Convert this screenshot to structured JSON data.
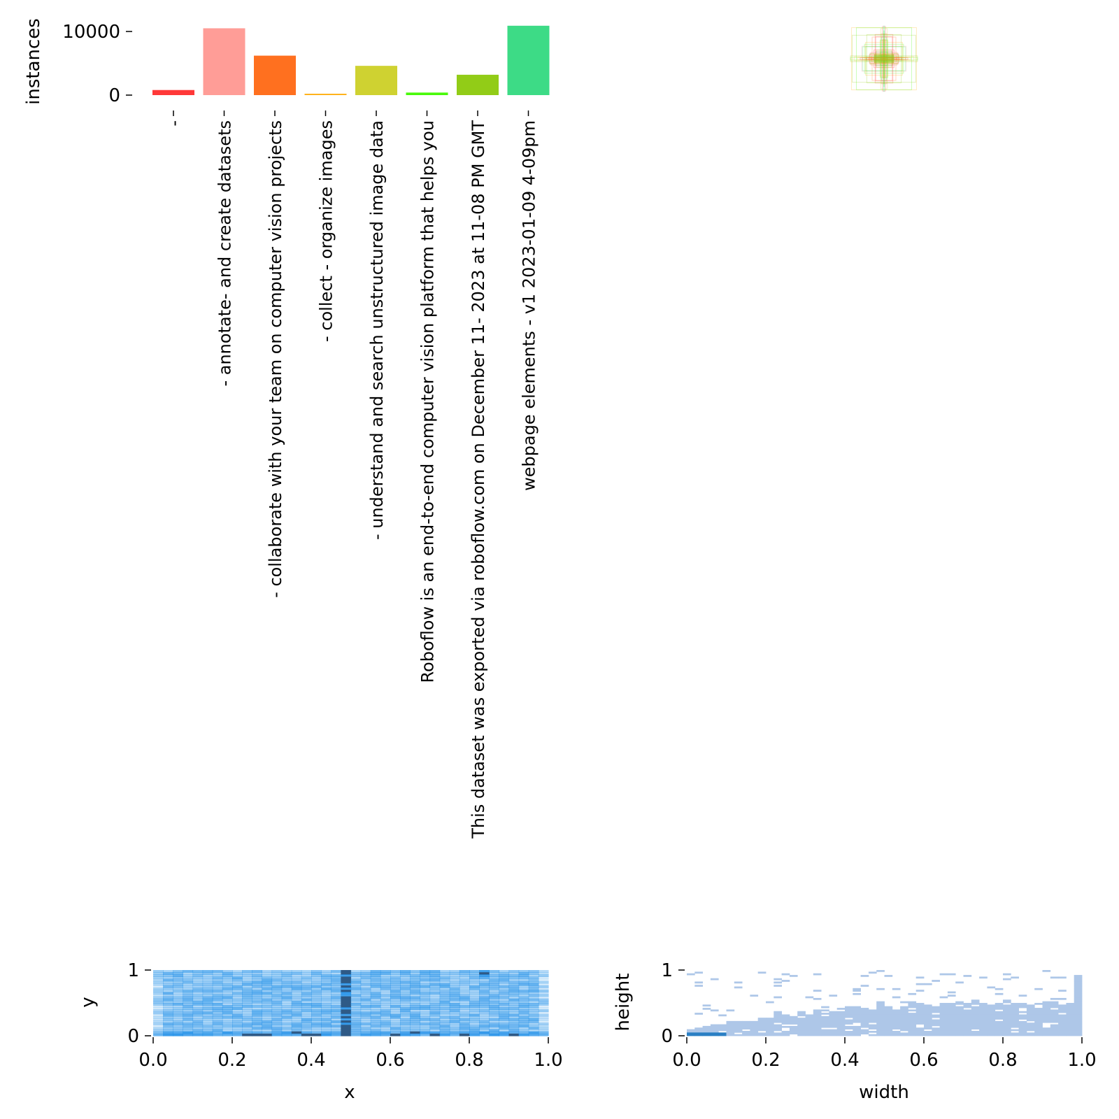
{
  "chart_data": [
    {
      "type": "bar",
      "ylabel": "instances",
      "xlabel": "",
      "ylim": [
        0,
        11000
      ],
      "yticks": [
        "0",
        "10000"
      ],
      "categories": [
        "-",
        "- annotate- and create datasets",
        "- collaborate with your team on computer vision projects",
        "- collect - organize images",
        "- understand and search unstructured image data",
        "Roboflow is an end-to-end computer vision platform that helps you",
        "This dataset was exported via roboflow.com on December 11- 2023 at 11-08 PM GMT",
        "webpage elements - v1 2023-01-09 4-09pm"
      ],
      "values": [
        800,
        10500,
        6200,
        150,
        4600,
        400,
        3200,
        10900
      ],
      "colors": [
        "#ff3838",
        "#ff9d97",
        "#ff701f",
        "#ffb21d",
        "#cfd231",
        "#48f90a",
        "#92cc17",
        "#3ddb86"
      ]
    },
    {
      "type": "scatter",
      "description_kind": "box-overlay",
      "xlim": [
        0,
        1
      ],
      "ylim": [
        0,
        1
      ]
    },
    {
      "type": "heatmap",
      "xlabel": "x",
      "ylabel": "y",
      "xlim": [
        0,
        1
      ],
      "ylim": [
        0,
        1
      ],
      "xticks": [
        "0.0",
        "0.2",
        "0.4",
        "0.6",
        "0.8",
        "1.0"
      ],
      "yticks": [
        "0",
        "1"
      ],
      "color": "#1f77b4"
    },
    {
      "type": "heatmap",
      "xlabel": "width",
      "ylabel": "height",
      "xlim": [
        0,
        1
      ],
      "ylim": [
        0,
        1
      ],
      "xticks": [
        "0.0",
        "0.2",
        "0.4",
        "0.6",
        "0.8",
        "1.0"
      ],
      "yticks": [
        "0",
        "1"
      ],
      "color": "#aec7e8"
    }
  ]
}
